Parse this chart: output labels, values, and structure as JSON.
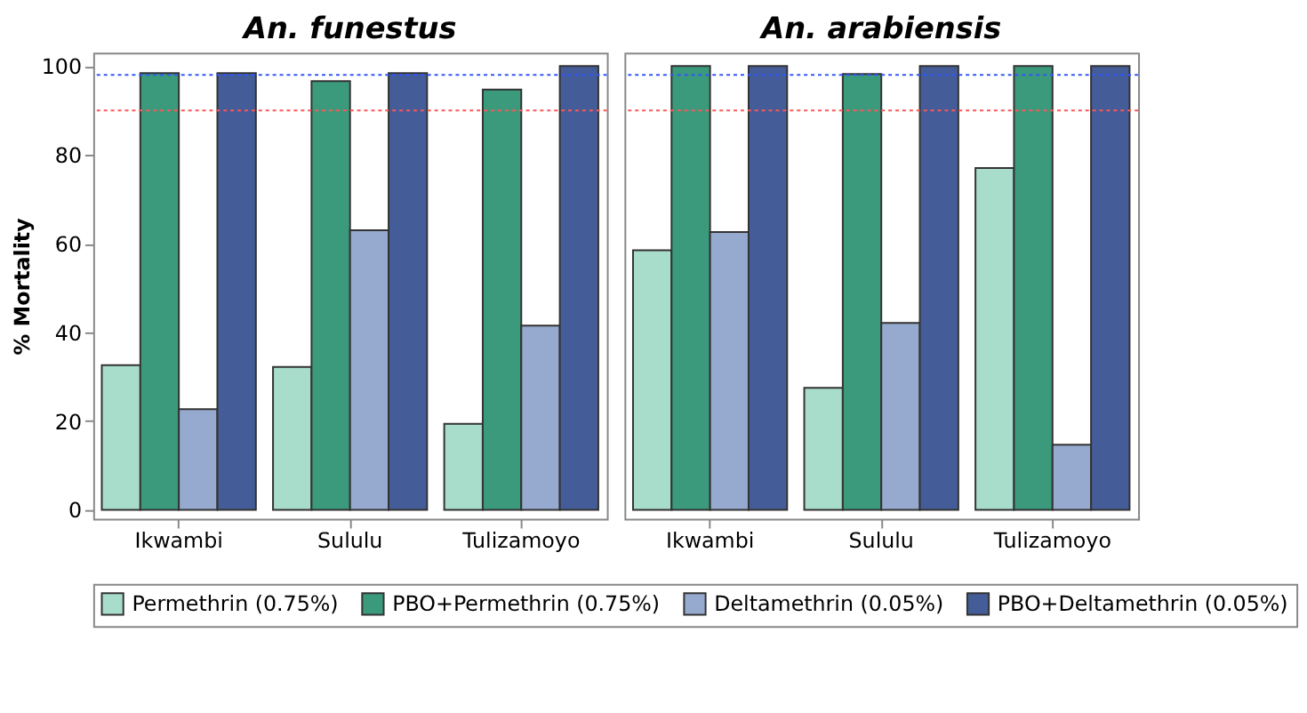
{
  "chart_data": [
    {
      "type": "bar",
      "title": "An. funestus",
      "ylabel": "% Mortality",
      "categories": [
        "Ikwambi",
        "Sululu",
        "Tulizamoyo"
      ],
      "ylim": [
        -2,
        103
      ],
      "yticks": [
        0,
        20,
        40,
        60,
        80,
        100
      ],
      "legend": "bottom",
      "series": [
        {
          "name": "Permethrin (0.75%)",
          "color": "#a8dccb",
          "values": [
            32.6,
            32.2,
            19.4
          ]
        },
        {
          "name": "PBO+Permethrin (0.75%)",
          "color": "#3b9a7c",
          "values": [
            98.4,
            96.6,
            94.7
          ]
        },
        {
          "name": "Deltamethrin (0.05%)",
          "color": "#96aacf",
          "values": [
            22.7,
            63,
            41.5
          ]
        },
        {
          "name": "PBO+Deltamethrin (0.05%)",
          "color": "#445d98",
          "values": [
            98.4,
            98.4,
            100
          ]
        }
      ],
      "ref_lines": [
        {
          "axis": "y",
          "value": 98,
          "color": "#3355ff",
          "line_style": "dotted"
        },
        {
          "axis": "y",
          "value": 90,
          "color": "#ff5555",
          "line_style": "dotted"
        }
      ]
    },
    {
      "type": "bar",
      "title": "An. arabiensis",
      "categories": [
        "Ikwambi",
        "Sululu",
        "Tulizamoyo"
      ],
      "ylim": [
        -2,
        103
      ],
      "yticks": [
        0,
        20,
        40,
        60,
        80,
        100
      ],
      "tick_labels": "x",
      "legend": "bottom",
      "series": [
        {
          "name": "Permethrin (0.75%)",
          "color": "#a8dccb",
          "values": [
            58.5,
            27.5,
            77
          ]
        },
        {
          "name": "PBO+Permethrin (0.75%)",
          "color": "#3b9a7c",
          "values": [
            100,
            98.2,
            100
          ]
        },
        {
          "name": "Deltamethrin (0.05%)",
          "color": "#96aacf",
          "values": [
            62.6,
            42.1,
            14.7
          ]
        },
        {
          "name": "PBO+Deltamethrin (0.05%)",
          "color": "#445d98",
          "values": [
            100,
            100,
            100
          ]
        }
      ],
      "ref_lines": [
        {
          "axis": "y",
          "value": 98,
          "color": "#3355ff",
          "line_style": "dotted"
        },
        {
          "axis": "y",
          "value": 90,
          "color": "#ff5555",
          "line_style": "dotted"
        }
      ]
    }
  ]
}
